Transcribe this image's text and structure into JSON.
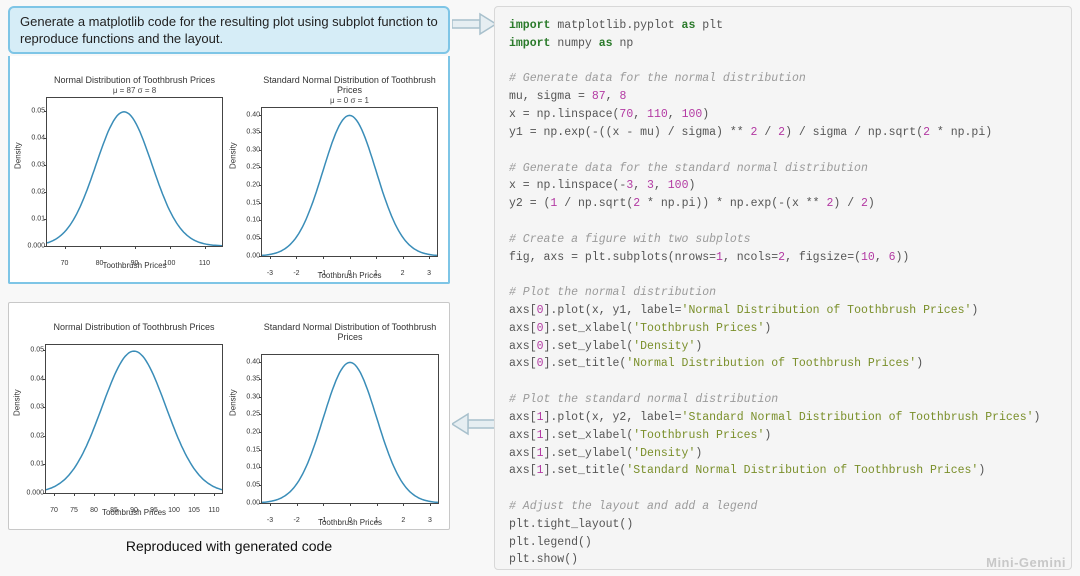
{
  "prompt": {
    "text": "Generate a matplotlib code for the resulting plot using subplot function to reproduce functions and the layout.",
    "bg_color": "#d6edf7",
    "border_color": "#7ec5e6"
  },
  "top_charts": {
    "left": {
      "title": "Normal Distribution of Toothbrush Prices",
      "subtitle": "μ = 87 σ = 8",
      "xlabel": "Toothbrush Prices",
      "ylabel": "Density",
      "xticks": [
        70,
        80,
        90,
        100,
        110
      ],
      "xlim": [
        65,
        115
      ],
      "yticks": [
        0.0,
        0.01,
        0.02,
        0.03,
        0.04,
        0.05
      ],
      "ylim": [
        0,
        0.055
      ],
      "line_color": "#3a8db8",
      "curve": {
        "mu": 87,
        "sigma": 8,
        "peak": 0.05
      }
    },
    "right": {
      "title": "Standard Normal Distribution of Toothbrush Prices",
      "subtitle": "μ = 0 σ = 1",
      "xlabel": "Toothbrush Prices",
      "ylabel": "Density",
      "xticks": [
        -3,
        -2,
        -1,
        0,
        1,
        2,
        3
      ],
      "xlim": [
        -3.3,
        3.3
      ],
      "yticks": [
        0.0,
        0.05,
        0.1,
        0.15,
        0.2,
        0.25,
        0.3,
        0.35,
        0.4
      ],
      "ylim": [
        0,
        0.42
      ],
      "line_color": "#3a8db8",
      "curve": {
        "mu": 0,
        "sigma": 1,
        "peak": 0.4
      }
    }
  },
  "bottom_charts": {
    "left": {
      "title": "Normal Distribution of Toothbrush Prices",
      "xlabel": "Toothbrush Prices",
      "ylabel": "Density",
      "xticks": [
        70,
        75,
        80,
        85,
        90,
        95,
        100,
        105,
        110
      ],
      "xlim": [
        68,
        112
      ],
      "yticks": [
        0.0,
        0.01,
        0.02,
        0.03,
        0.04,
        0.05
      ],
      "ylim": [
        0,
        0.052
      ],
      "line_color": "#3a8db8",
      "curve": {
        "mu": 90,
        "sigma": 8,
        "peak": 0.05
      }
    },
    "right": {
      "title": "Standard Normal Distribution of Toothbrush Prices",
      "xlabel": "Toothbrush Prices",
      "ylabel": "Density",
      "xticks": [
        -3,
        -2,
        -1,
        0,
        1,
        2,
        3
      ],
      "xlim": [
        -3.3,
        3.3
      ],
      "yticks": [
        0.0,
        0.05,
        0.1,
        0.15,
        0.2,
        0.25,
        0.3,
        0.35,
        0.4
      ],
      "ylim": [
        0,
        0.42
      ],
      "line_color": "#3a8db8",
      "curve": {
        "mu": 0,
        "sigma": 1,
        "peak": 0.4
      }
    }
  },
  "caption": "Reproduced with generated code",
  "code": {
    "lines": [
      {
        "t": "kw",
        "s": "import"
      },
      {
        "t": "p",
        "s": " matplotlib.pyplot "
      },
      {
        "t": "kw",
        "s": "as"
      },
      {
        "t": "p",
        "s": " plt\n"
      },
      {
        "t": "kw",
        "s": "import"
      },
      {
        "t": "p",
        "s": " numpy "
      },
      {
        "t": "kw",
        "s": "as"
      },
      {
        "t": "p",
        "s": " np\n\n"
      },
      {
        "t": "comment",
        "s": "# Generate data for the normal distribution\n"
      },
      {
        "t": "p",
        "s": "mu, sigma = "
      },
      {
        "t": "num",
        "s": "87"
      },
      {
        "t": "p",
        "s": ", "
      },
      {
        "t": "num",
        "s": "8"
      },
      {
        "t": "p",
        "s": "\n"
      },
      {
        "t": "p",
        "s": "x = np.linspace("
      },
      {
        "t": "num",
        "s": "70"
      },
      {
        "t": "p",
        "s": ", "
      },
      {
        "t": "num",
        "s": "110"
      },
      {
        "t": "p",
        "s": ", "
      },
      {
        "t": "num",
        "s": "100"
      },
      {
        "t": "p",
        "s": ")\n"
      },
      {
        "t": "p",
        "s": "y1 = np.exp(-((x - mu) / sigma) ** "
      },
      {
        "t": "num",
        "s": "2"
      },
      {
        "t": "p",
        "s": " / "
      },
      {
        "t": "num",
        "s": "2"
      },
      {
        "t": "p",
        "s": ") / sigma / np.sqrt("
      },
      {
        "t": "num",
        "s": "2"
      },
      {
        "t": "p",
        "s": " * np.pi)\n\n"
      },
      {
        "t": "comment",
        "s": "# Generate data for the standard normal distribution\n"
      },
      {
        "t": "p",
        "s": "x = np.linspace(-"
      },
      {
        "t": "num",
        "s": "3"
      },
      {
        "t": "p",
        "s": ", "
      },
      {
        "t": "num",
        "s": "3"
      },
      {
        "t": "p",
        "s": ", "
      },
      {
        "t": "num",
        "s": "100"
      },
      {
        "t": "p",
        "s": ")\n"
      },
      {
        "t": "p",
        "s": "y2 = ("
      },
      {
        "t": "num",
        "s": "1"
      },
      {
        "t": "p",
        "s": " / np.sqrt("
      },
      {
        "t": "num",
        "s": "2"
      },
      {
        "t": "p",
        "s": " * np.pi)) * np.exp(-(x ** "
      },
      {
        "t": "num",
        "s": "2"
      },
      {
        "t": "p",
        "s": ") / "
      },
      {
        "t": "num",
        "s": "2"
      },
      {
        "t": "p",
        "s": ")\n\n"
      },
      {
        "t": "comment",
        "s": "# Create a figure with two subplots\n"
      },
      {
        "t": "p",
        "s": "fig, axs = plt.subplots(nrows="
      },
      {
        "t": "num",
        "s": "1"
      },
      {
        "t": "p",
        "s": ", ncols="
      },
      {
        "t": "num",
        "s": "2"
      },
      {
        "t": "p",
        "s": ", figsize=("
      },
      {
        "t": "num",
        "s": "10"
      },
      {
        "t": "p",
        "s": ", "
      },
      {
        "t": "num",
        "s": "6"
      },
      {
        "t": "p",
        "s": "))\n\n"
      },
      {
        "t": "comment",
        "s": "# Plot the normal distribution\n"
      },
      {
        "t": "p",
        "s": "axs["
      },
      {
        "t": "num",
        "s": "0"
      },
      {
        "t": "p",
        "s": "].plot(x, y1, label="
      },
      {
        "t": "str",
        "s": "'Normal Distribution of Toothbrush Prices'"
      },
      {
        "t": "p",
        "s": ")\n"
      },
      {
        "t": "p",
        "s": "axs["
      },
      {
        "t": "num",
        "s": "0"
      },
      {
        "t": "p",
        "s": "].set_xlabel("
      },
      {
        "t": "str",
        "s": "'Toothbrush Prices'"
      },
      {
        "t": "p",
        "s": ")\n"
      },
      {
        "t": "p",
        "s": "axs["
      },
      {
        "t": "num",
        "s": "0"
      },
      {
        "t": "p",
        "s": "].set_ylabel("
      },
      {
        "t": "str",
        "s": "'Density'"
      },
      {
        "t": "p",
        "s": ")\n"
      },
      {
        "t": "p",
        "s": "axs["
      },
      {
        "t": "num",
        "s": "0"
      },
      {
        "t": "p",
        "s": "].set_title("
      },
      {
        "t": "str",
        "s": "'Normal Distribution of Toothbrush Prices'"
      },
      {
        "t": "p",
        "s": ")\n\n"
      },
      {
        "t": "comment",
        "s": "# Plot the standard normal distribution\n"
      },
      {
        "t": "p",
        "s": "axs["
      },
      {
        "t": "num",
        "s": "1"
      },
      {
        "t": "p",
        "s": "].plot(x, y2, label="
      },
      {
        "t": "str",
        "s": "'Standard Normal Distribution of Toothbrush Prices'"
      },
      {
        "t": "p",
        "s": ")\n"
      },
      {
        "t": "p",
        "s": "axs["
      },
      {
        "t": "num",
        "s": "1"
      },
      {
        "t": "p",
        "s": "].set_xlabel("
      },
      {
        "t": "str",
        "s": "'Toothbrush Prices'"
      },
      {
        "t": "p",
        "s": ")\n"
      },
      {
        "t": "p",
        "s": "axs["
      },
      {
        "t": "num",
        "s": "1"
      },
      {
        "t": "p",
        "s": "].set_ylabel("
      },
      {
        "t": "str",
        "s": "'Density'"
      },
      {
        "t": "p",
        "s": ")\n"
      },
      {
        "t": "p",
        "s": "axs["
      },
      {
        "t": "num",
        "s": "1"
      },
      {
        "t": "p",
        "s": "].set_title("
      },
      {
        "t": "str",
        "s": "'Standard Normal Distribution of Toothbrush Prices'"
      },
      {
        "t": "p",
        "s": ")\n\n"
      },
      {
        "t": "comment",
        "s": "# Adjust the layout and add a legend\n"
      },
      {
        "t": "p",
        "s": "plt.tight_layout()\n"
      },
      {
        "t": "p",
        "s": "plt.legend()\n"
      },
      {
        "t": "p",
        "s": "plt.show()\n"
      }
    ]
  },
  "watermark": "Mini-Gemini",
  "arrows": {
    "color_stroke": "#a8c0cc",
    "color_fill": "#e6eef2"
  }
}
